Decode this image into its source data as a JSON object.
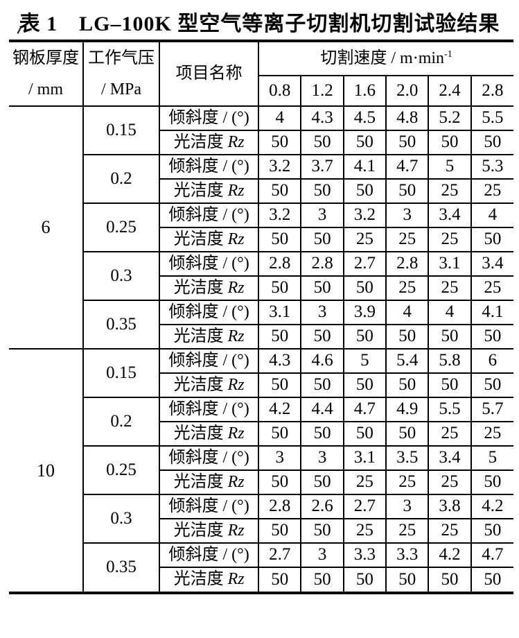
{
  "title": "表 1　LG–100K 型空气等离子切割机切割试验结果",
  "table": {
    "header": {
      "thickness_line1": "钢板厚度",
      "thickness_line2": "/ mm",
      "pressure_line1": "工作气压",
      "pressure_line2": "/ MPa",
      "item": "项目名称",
      "speed_group_label": "切割速度 / m·min",
      "speed_group_sup": "-1",
      "speeds": [
        "0.8",
        "1.2",
        "1.6",
        "2.0",
        "2.4",
        "2.8"
      ]
    },
    "row_labels": {
      "incline": "倾斜度 / (°)",
      "finish_prefix": "光洁度",
      "finish_symbol": "Rz"
    },
    "sections": [
      {
        "thickness": "6",
        "groups": [
          {
            "pressure": "0.15",
            "incline": [
              "4",
              "4.3",
              "4.5",
              "4.8",
              "5.2",
              "5.5"
            ],
            "finish": [
              "50",
              "50",
              "50",
              "50",
              "50",
              "50"
            ]
          },
          {
            "pressure": "0.2",
            "incline": [
              "3.2",
              "3.7",
              "4.1",
              "4.7",
              "5",
              "5.3"
            ],
            "finish": [
              "50",
              "50",
              "50",
              "50",
              "25",
              "25"
            ]
          },
          {
            "pressure": "0.25",
            "incline": [
              "3.2",
              "3",
              "3.2",
              "3",
              "3.4",
              "4"
            ],
            "finish": [
              "50",
              "50",
              "25",
              "25",
              "25",
              "50"
            ]
          },
          {
            "pressure": "0.3",
            "incline": [
              "2.8",
              "2.8",
              "2.7",
              "2.8",
              "3.1",
              "3.4"
            ],
            "finish": [
              "50",
              "50",
              "50",
              "25",
              "25",
              "25"
            ]
          },
          {
            "pressure": "0.35",
            "incline": [
              "3.1",
              "3",
              "3.9",
              "4",
              "4",
              "4.1"
            ],
            "finish": [
              "50",
              "50",
              "50",
              "50",
              "50",
              "50"
            ]
          }
        ]
      },
      {
        "thickness": "10",
        "groups": [
          {
            "pressure": "0.15",
            "incline": [
              "4.3",
              "4.6",
              "5",
              "5.4",
              "5.8",
              "6"
            ],
            "finish": [
              "50",
              "50",
              "50",
              "50",
              "50",
              "50"
            ]
          },
          {
            "pressure": "0.2",
            "incline": [
              "4.2",
              "4.4",
              "4.7",
              "4.9",
              "5.5",
              "5.7"
            ],
            "finish": [
              "50",
              "50",
              "50",
              "50",
              "25",
              "25"
            ]
          },
          {
            "pressure": "0.25",
            "incline": [
              "3",
              "3",
              "3.1",
              "3.5",
              "3.4",
              "5"
            ],
            "finish": [
              "50",
              "50",
              "25",
              "25",
              "25",
              "50"
            ]
          },
          {
            "pressure": "0.3",
            "incline": [
              "2.8",
              "2.6",
              "2.7",
              "3",
              "3.8",
              "4.2"
            ],
            "finish": [
              "50",
              "50",
              "25",
              "25",
              "25",
              "50"
            ]
          },
          {
            "pressure": "0.35",
            "incline": [
              "2.7",
              "3",
              "3.3",
              "3.3",
              "4.2",
              "4.7"
            ],
            "finish": [
              "50",
              "50",
              "50",
              "50",
              "50",
              "50"
            ]
          }
        ]
      }
    ]
  }
}
